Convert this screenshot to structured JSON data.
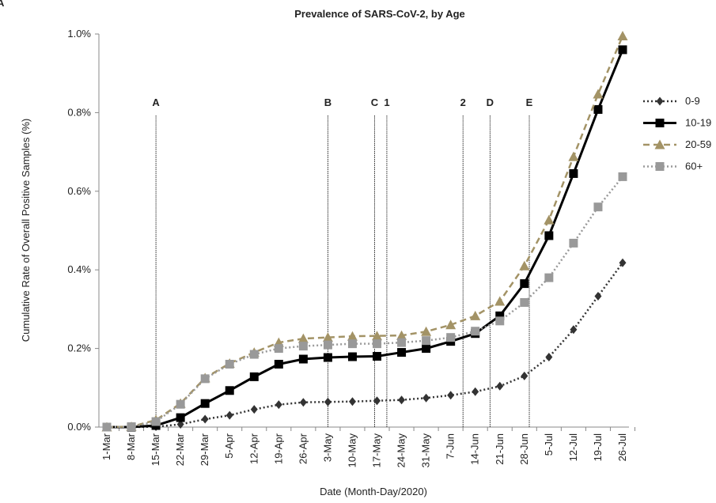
{
  "panel_label": "A",
  "chart_data": {
    "type": "line",
    "title": "Prevalence of SARS-CoV-2, by Age",
    "x_label": "Date (Month-Day/2020)",
    "y_label": "Cumulative Rate of Overall Positive Samples (%)",
    "categories": [
      "1-Mar",
      "8-Mar",
      "15-Mar",
      "22-Mar",
      "29-Mar",
      "5-Apr",
      "12-Apr",
      "19-Apr",
      "26-Apr",
      "3-May",
      "10-May",
      "17-May",
      "24-May",
      "31-May",
      "7-Jun",
      "14-Jun",
      "21-Jun",
      "28-Jun",
      "5-Jul",
      "12-Jul",
      "19-Jul",
      "26-Jul"
    ],
    "ylim": [
      0,
      1.0
    ],
    "yticks": [
      {
        "value": 0,
        "label": "0.0%"
      },
      {
        "value": 0.2,
        "label": "0.2%"
      },
      {
        "value": 0.4,
        "label": "0.4%"
      },
      {
        "value": 0.6,
        "label": "0.6%"
      },
      {
        "value": 0.8,
        "label": "0.8%"
      },
      {
        "value": 1.0,
        "label": "1.0%"
      }
    ],
    "legend": "right",
    "events": [
      {
        "label": "A",
        "x": 2,
        "color": "#000000"
      },
      {
        "label": "B",
        "x": 9,
        "color": "#000000"
      },
      {
        "label": "C",
        "x": 10.9,
        "color": "#000000"
      },
      {
        "label": "1",
        "x": 11.4,
        "color": "#2e75b6"
      },
      {
        "label": "2",
        "x": 14.5,
        "color": "#2e75b6"
      },
      {
        "label": "D",
        "x": 15.6,
        "color": "#000000"
      },
      {
        "label": "E",
        "x": 17.2,
        "color": "#000000"
      }
    ],
    "series": [
      {
        "name": "0-9",
        "color": "#333333",
        "marker": "diamond",
        "dash": "dot",
        "values": [
          0,
          0,
          0.001,
          0.007,
          0.02,
          0.03,
          0.045,
          0.057,
          0.063,
          0.064,
          0.065,
          0.067,
          0.069,
          0.074,
          0.081,
          0.09,
          0.104,
          0.13,
          0.178,
          0.248,
          0.333,
          0.418
        ]
      },
      {
        "name": "10-19",
        "color": "#000000",
        "marker": "square",
        "dash": "solid",
        "values": [
          0,
          0,
          0.004,
          0.024,
          0.06,
          0.093,
          0.128,
          0.16,
          0.173,
          0.177,
          0.179,
          0.18,
          0.19,
          0.2,
          0.218,
          0.238,
          0.283,
          0.365,
          0.487,
          0.645,
          0.808,
          0.96
        ]
      },
      {
        "name": "20-59",
        "color": "#a39366",
        "marker": "triangle",
        "dash": "dash",
        "values": [
          0,
          0.001,
          0.018,
          0.06,
          0.125,
          0.162,
          0.19,
          0.215,
          0.225,
          0.228,
          0.231,
          0.232,
          0.233,
          0.243,
          0.26,
          0.283,
          0.32,
          0.41,
          0.527,
          0.688,
          0.847,
          0.995
        ]
      },
      {
        "name": "60+",
        "color": "#999999",
        "marker": "square",
        "dash": "dot",
        "values": [
          0,
          0.001,
          0.014,
          0.058,
          0.123,
          0.16,
          0.185,
          0.2,
          0.206,
          0.209,
          0.212,
          0.212,
          0.215,
          0.22,
          0.228,
          0.244,
          0.27,
          0.317,
          0.38,
          0.468,
          0.56,
          0.637
        ]
      }
    ]
  }
}
